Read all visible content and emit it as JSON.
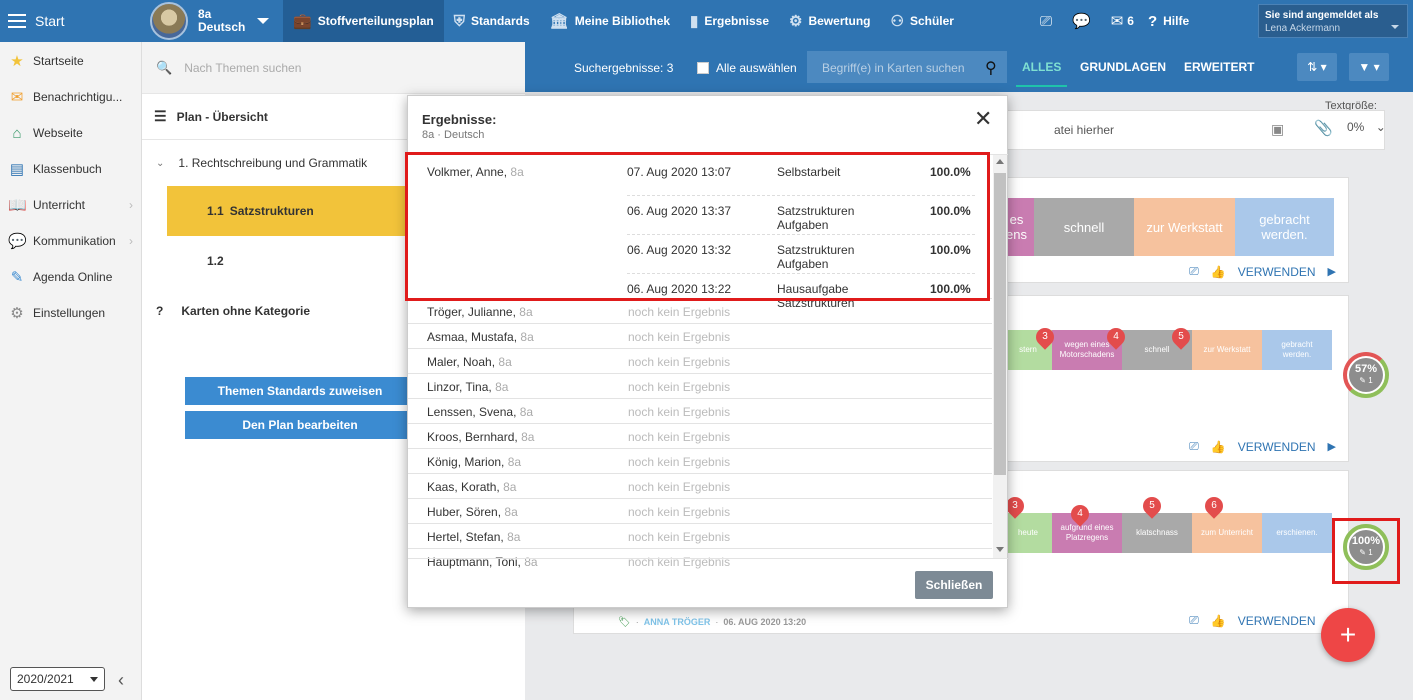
{
  "topbar": {
    "start_label": "Start",
    "class_name": "8a",
    "class_subject": "Deutsch",
    "nav": [
      {
        "label": "Stoffverteilungsplan",
        "icon": "briefcase-icon",
        "active": true
      },
      {
        "label": "Standards",
        "icon": "shield-icon"
      },
      {
        "label": "Meine Bibliothek",
        "icon": "library-icon"
      },
      {
        "label": "Ergebnisse",
        "icon": "bar-chart-icon"
      },
      {
        "label": "Bewertung",
        "icon": "rating-icon"
      },
      {
        "label": "Schüler",
        "icon": "students-icon"
      }
    ],
    "mail_count": "6",
    "help_label": "Hilfe",
    "user_caption": "Sie sind angemeldet als",
    "user_name": "Lena Ackermann"
  },
  "sidebar": {
    "items": [
      {
        "label": "Startseite",
        "icon": "star-icon"
      },
      {
        "label": "Benachrichtigu...",
        "icon": "envelope-icon"
      },
      {
        "label": "Webseite",
        "icon": "home-icon"
      },
      {
        "label": "Klassenbuch",
        "icon": "book-icon"
      },
      {
        "label": "Unterricht",
        "icon": "open-book-icon"
      },
      {
        "label": "Kommunikation",
        "icon": "chat-icon"
      },
      {
        "label": "Agenda Online",
        "icon": "pen-icon"
      },
      {
        "label": "Einstellungen",
        "icon": "gear-icon"
      }
    ],
    "year": "2020/2021"
  },
  "plan": {
    "search_placeholder": "Nach Themen suchen",
    "overview_title": "Plan - Übersicht",
    "chapter": "1. Rechtschreibung und Grammatik",
    "sub1_num": "1.1",
    "sub1_label": "Satzstrukturen",
    "sub2_num": "1.2",
    "no_category_mark": "?",
    "no_category": "Karten ohne Kategorie",
    "btn_standards": "Themen Standards zuweisen",
    "btn_edit": "Den Plan bearbeiten"
  },
  "filterbar": {
    "result_count": "Suchergebnisse: 3",
    "select_all": "Alle auswählen",
    "search_placeholder": "Begriff(e) in Karten suchen",
    "tabs": [
      "ALLES",
      "GRUNDLAGEN",
      "ERWEITERT"
    ]
  },
  "content": {
    "upload_text": "atei hierher",
    "textsize_label": "Textgröße:",
    "textsize_value": "0%",
    "card1_tiles": [
      "es\nens",
      "schnell",
      "zur Werkstatt",
      "gebracht\nwerden."
    ],
    "card2_tiles": [
      "stern",
      "wegen eines\nMotorschadens",
      "schnell",
      "zur Werkstatt",
      "gebracht\nwerden."
    ],
    "card2_pins": [
      "3",
      "4",
      "5"
    ],
    "card3_tiles": [
      "heute",
      "aufgrund eines\nPlatzregens",
      "klatschnass",
      "zum Unterricht",
      "erschienen."
    ],
    "card3_pins": [
      "3",
      "4",
      "5",
      "6"
    ],
    "use_label": "VERWENDEN",
    "card3_author": "ANNA TRÖGER",
    "card3_date": "06. AUG 2020 13:20",
    "ring1_value": "57%",
    "ring1_count": "1",
    "ring2_value": "100%",
    "ring2_count": "1",
    "fab": "+"
  },
  "modal": {
    "title": "Ergebnisse:",
    "subtitle": "8a · Deutsch",
    "first_student": {
      "name": "Volkmer, Anne,",
      "class": "8a",
      "results": [
        {
          "date": "07. Aug 2020 13:07",
          "task": "Selbstarbeit",
          "score": "100.0%"
        },
        {
          "date": "06. Aug 2020 13:37",
          "task": "Satzstrukturen Aufgaben",
          "score": "100.0%"
        },
        {
          "date": "06. Aug 2020 13:32",
          "task": "Satzstrukturen Aufgaben",
          "score": "100.0%"
        },
        {
          "date": "06. Aug 2020 13:22",
          "task": "Hausaufgabe Satzstrukturen",
          "score": "100.0%"
        }
      ]
    },
    "no_result_label": "noch kein Ergebnis",
    "students": [
      {
        "name": "Tröger, Julianne,",
        "class": "8a"
      },
      {
        "name": "Asmaa, Mustafa,",
        "class": "8a"
      },
      {
        "name": "Maler, Noah,",
        "class": "8a"
      },
      {
        "name": "Linzor, Tina,",
        "class": "8a"
      },
      {
        "name": "Lenssen, Svena,",
        "class": "8a"
      },
      {
        "name": "Kroos, Bernhard,",
        "class": "8a"
      },
      {
        "name": "König, Marion,",
        "class": "8a"
      },
      {
        "name": "Kaas, Korath,",
        "class": "8a"
      },
      {
        "name": "Huber, Sören,",
        "class": "8a"
      },
      {
        "name": "Hertel, Stefan,",
        "class": "8a"
      },
      {
        "name": "Hauptmann, Toni,",
        "class": "8a"
      }
    ],
    "close_label": "Schließen"
  }
}
